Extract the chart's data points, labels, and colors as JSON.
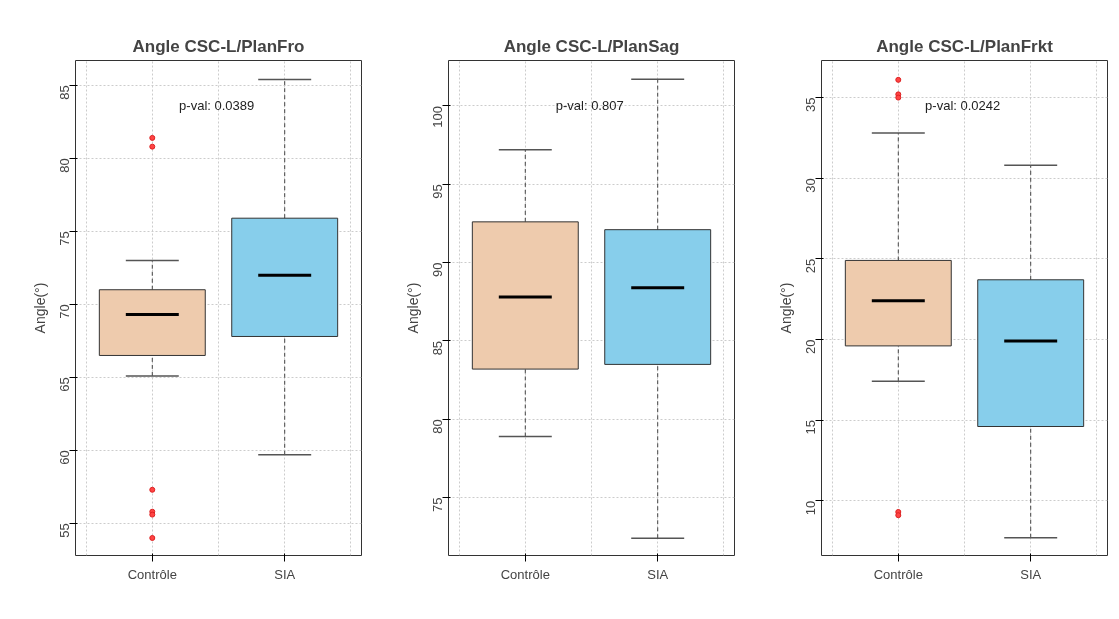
{
  "chart_data": [
    {
      "type": "box",
      "title": "Angle CSC-L/PlanFro",
      "ylabel": "Angle(°)",
      "categories": [
        "Contrôle",
        "SIA"
      ],
      "colors": [
        "#eecbad",
        "#87ceeb"
      ],
      "boxes": [
        {
          "low": 65.1,
          "q1": 66.5,
          "median": 69.3,
          "q3": 71.0,
          "high": 73.0,
          "outliers": [
            81.4,
            80.8,
            57.3,
            55.8,
            55.6,
            54.0
          ]
        },
        {
          "low": 59.7,
          "q1": 67.8,
          "median": 72.0,
          "q3": 75.9,
          "high": 85.4
        }
      ],
      "ylim": [
        52.8,
        86.7
      ],
      "yticks": [
        55,
        60,
        65,
        70,
        75,
        80,
        85
      ],
      "grid": true,
      "annotations": [
        "p-val:  0.0389"
      ]
    },
    {
      "type": "box",
      "title": "Angle CSC-L/PlanSag",
      "ylabel": "Angle(°)",
      "categories": [
        "Contrôle",
        "SIA"
      ],
      "colors": [
        "#eecbad",
        "#87ceeb"
      ],
      "boxes": [
        {
          "low": 78.9,
          "q1": 83.2,
          "median": 87.8,
          "q3": 92.6,
          "high": 97.2
        },
        {
          "low": 72.4,
          "q1": 83.5,
          "median": 88.4,
          "q3": 92.1,
          "high": 101.7
        }
      ],
      "ylim": [
        71.3,
        102.9
      ],
      "yticks": [
        75,
        80,
        85,
        90,
        95,
        100
      ],
      "grid": true,
      "annotations": [
        "p-val:  0.807"
      ]
    },
    {
      "type": "box",
      "title": "Angle CSC-L/PlanFrkt",
      "ylabel": "Angle(°)",
      "categories": [
        "Contrôle",
        "SIA"
      ],
      "colors": [
        "#eecbad",
        "#87ceeb"
      ],
      "boxes": [
        {
          "low": 17.4,
          "q1": 19.6,
          "median": 22.4,
          "q3": 24.9,
          "high": 32.8,
          "outliers": [
            36.1,
            35.2,
            35.0,
            9.3,
            9.1
          ]
        },
        {
          "low": 7.7,
          "q1": 14.6,
          "median": 19.9,
          "q3": 23.7,
          "high": 30.8
        }
      ],
      "ylim": [
        6.6,
        37.3
      ],
      "yticks": [
        10,
        15,
        20,
        25,
        30,
        35
      ],
      "grid": true,
      "annotations": [
        "p-val:  0.0242"
      ]
    }
  ]
}
